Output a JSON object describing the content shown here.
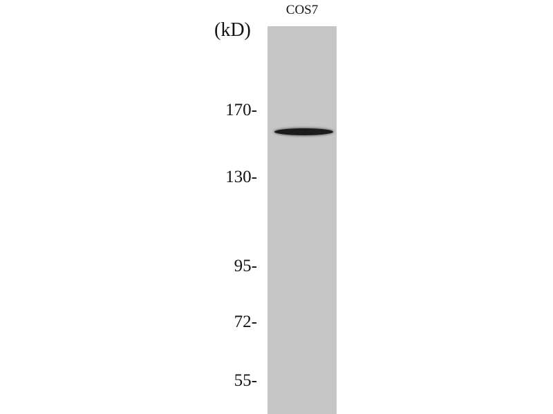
{
  "lane_label": "COS7",
  "unit_label": "(kD)",
  "markers": [
    "170-",
    "130-",
    "95-",
    "72-",
    "55-"
  ],
  "background_color": "#c6c6c6",
  "band_color": "#1c1c1c"
}
